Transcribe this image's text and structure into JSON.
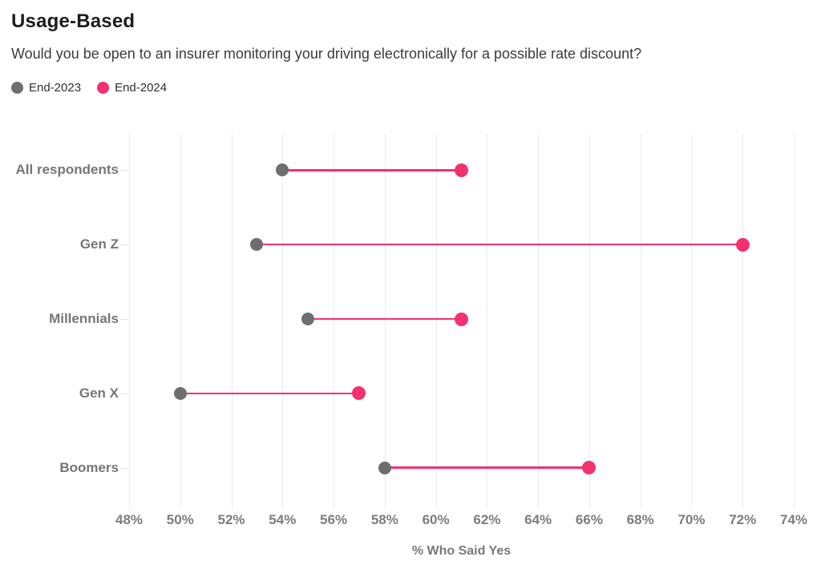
{
  "header": {
    "title": "Usage-Based",
    "subtitle": "Would you be open to an insurer monitoring your driving electronically for a possible rate discount?"
  },
  "colors": {
    "series_2023": "#6e6e6e",
    "series_2024": "#f3316e",
    "gridline": "#ececec",
    "label_gray": "#767676"
  },
  "chart_data": {
    "type": "dumbbell",
    "categories": [
      "All respondents",
      "Gen Z",
      "Millennials",
      "Gen X",
      "Boomers"
    ],
    "series": [
      {
        "name": "End-2023",
        "color": "#6e6e6e",
        "values": [
          54,
          53,
          55,
          50,
          58
        ]
      },
      {
        "name": "End-2024",
        "color": "#f3316e",
        "values": [
          61,
          72,
          61,
          57,
          66
        ]
      }
    ],
    "title": "Usage-Based",
    "subtitle": "Would you be open to an insurer monitoring your driving electronically for a possible rate discount?",
    "xlabel": "% Who Said Yes",
    "ylabel": "",
    "xlim": [
      48,
      74
    ],
    "x_ticks": [
      48,
      50,
      52,
      54,
      56,
      58,
      60,
      62,
      64,
      66,
      68,
      70,
      72,
      74
    ],
    "x_tick_suffix": "%",
    "grid": true,
    "legend_position": "top-left",
    "connector_color": "#f3316e"
  }
}
